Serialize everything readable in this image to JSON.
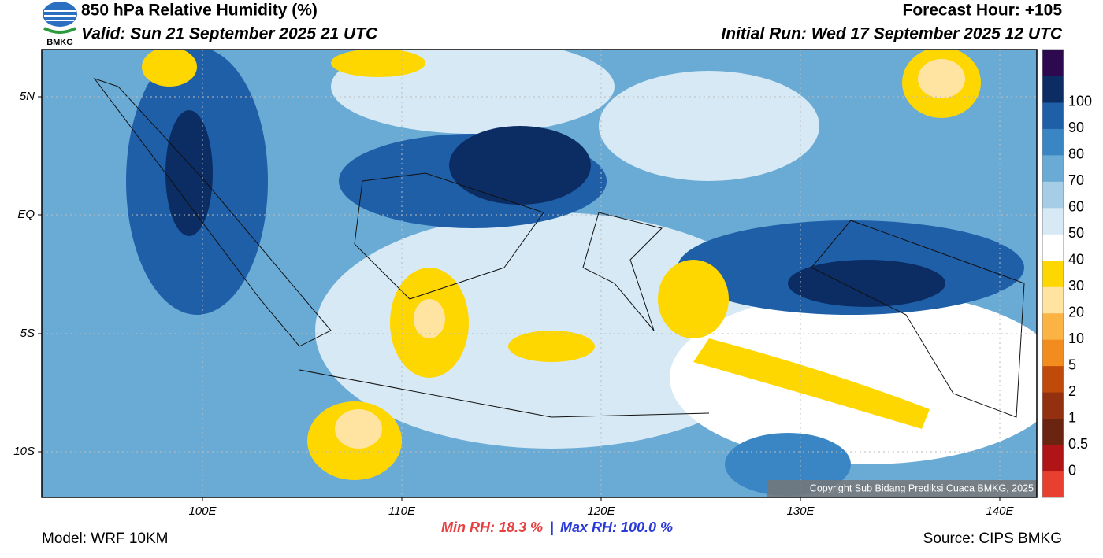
{
  "header": {
    "title": "850 hPa Relative Humidity (%)",
    "valid": "Valid: Sun 21 September 2025 21 UTC",
    "forecast_hour": "Forecast Hour: +105",
    "initial_run": "Initial Run: Wed 17 September 2025 12 UTC",
    "logo": "BMKG"
  },
  "map": {
    "lat_labels": [
      "5N",
      "EQ",
      "5S",
      "10S"
    ],
    "lon_labels": [
      "100E",
      "110E",
      "120E",
      "130E",
      "140E"
    ],
    "copyright": "Copyright Sub Bidang Prediksi Cuaca BMKG, 2025"
  },
  "colorbar": {
    "labels": [
      0,
      0.5,
      1,
      2,
      5,
      10,
      20,
      30,
      40,
      50,
      60,
      70,
      80,
      90,
      100
    ],
    "colors": [
      "#e8402e",
      "#b01417",
      "#6b2410",
      "#93300f",
      "#c04a0a",
      "#f28c1e",
      "#fbb344",
      "#ffe3a0",
      "#ffd700",
      "#ffffff",
      "#d6e9f4",
      "#a6cde6",
      "#6aabd6",
      "#3a86c4",
      "#1f5fa8",
      "#0b2d63",
      "#2d0a50"
    ]
  },
  "footer": {
    "model": "Model: WRF 10KM",
    "min_rh": "Min RH:  18.3 %",
    "separator": "|",
    "max_rh": "Max RH: 100.0 %",
    "source": "Source: CIPS BMKG"
  }
}
